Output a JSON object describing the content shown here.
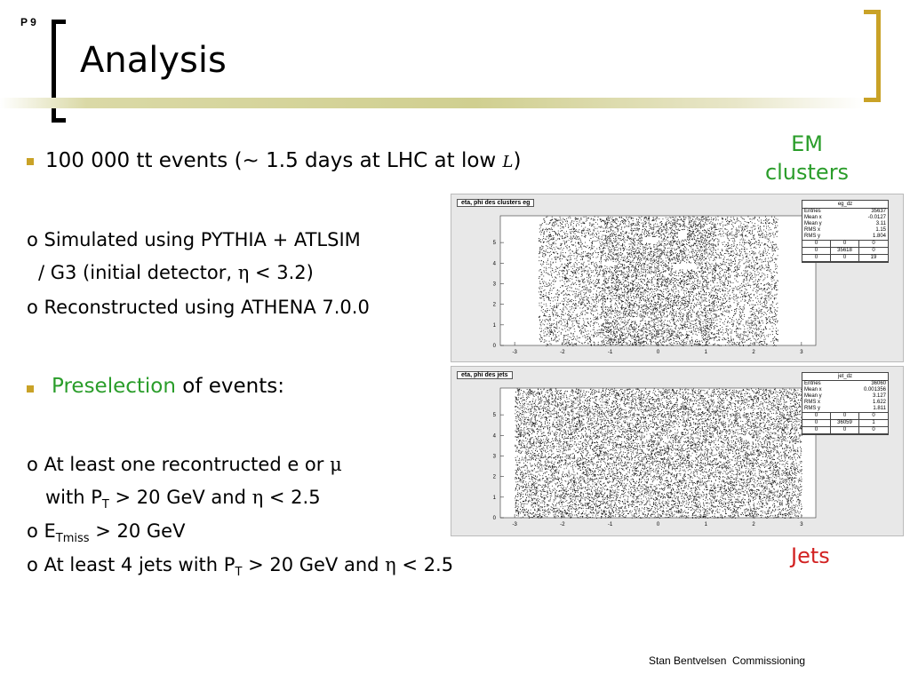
{
  "page_number": "P 9",
  "title": "Analysis",
  "bullets": {
    "b1": {
      "prefix": "100 000 tt events (~ 1.5 days at LHC at low ",
      "symbol": "L",
      "suffix": ")"
    },
    "sim1": "o Simulated using PYTHIA + ATLSIM",
    "sim2_prefix": "/ G3 (initial detector, ",
    "sim2_sym": "η",
    "sim2_suffix": " < 3.2)",
    "reco": "o Reconstructed using ATHENA 7.0.0",
    "b2_green": "Preselection",
    "b2_rest": " of events:",
    "c1_prefix": "o At least one recontructed e or ",
    "c1_sym": "μ",
    "c2_a": "with P",
    "c2_sub": "T",
    "c2_b": " > 20 GeV and ",
    "c2_sym": "η",
    "c2_c": " < 2.5",
    "c3_a": "o E",
    "c3_sub": "Tmiss",
    "c3_b": " > 20 GeV",
    "c4_a": "o At least 4 jets with P",
    "c4_sub": "T",
    "c4_b": " > 20 GeV and ",
    "c4_sym": "η",
    "c4_c": " < 2.5"
  },
  "labels": {
    "em": "EM clusters",
    "jets": "Jets"
  },
  "footer": "Stan Bentvelsen  Commissioning",
  "colors": {
    "accent": "#c9a227",
    "green": "#2a9d2a",
    "red": "#d22222"
  },
  "plots": [
    {
      "title": "eta, phi des clusters eg",
      "stats_title": "eg_dz",
      "stats": [
        [
          "Entries",
          "35637"
        ],
        [
          "Mean x",
          "-0.0127"
        ],
        [
          "Mean y",
          "3.11"
        ],
        [
          "RMS x",
          "1.15"
        ],
        [
          "RMS y",
          "1.804"
        ]
      ],
      "grid": [
        "0",
        "0",
        "0",
        "0",
        "35618",
        "0",
        "0",
        "0",
        "19"
      ],
      "x_ticks": [
        "-3",
        "-2",
        "-1",
        "0",
        "1",
        "2",
        "3"
      ],
      "y_ticks": [
        "0",
        "1",
        "2",
        "3",
        "4",
        "5"
      ]
    },
    {
      "title": "eta, phi des jets",
      "stats_title": "jet_dz",
      "stats": [
        [
          "Entries",
          "36060"
        ],
        [
          "Mean x",
          "0.001356"
        ],
        [
          "Mean y",
          "3.127"
        ],
        [
          "RMS x",
          "1.622"
        ],
        [
          "RMS y",
          "1.811"
        ]
      ],
      "grid": [
        "0",
        "0",
        "0",
        "0",
        "36059",
        "1",
        "0",
        "0",
        "0"
      ],
      "x_ticks": [
        "-3",
        "-2",
        "-1",
        "0",
        "1",
        "2",
        "3"
      ],
      "y_ticks": [
        "0",
        "1",
        "2",
        "3",
        "4",
        "5"
      ]
    }
  ]
}
